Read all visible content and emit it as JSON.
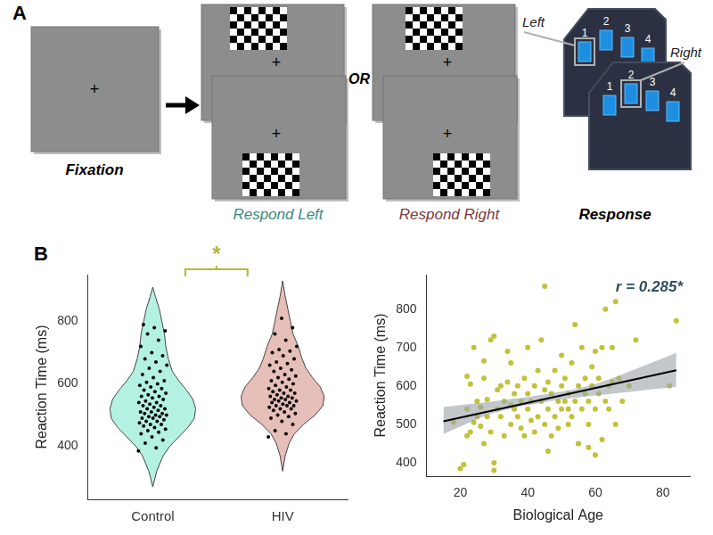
{
  "panel_a": {
    "letter": "A",
    "fixation": {
      "label": "Fixation",
      "symbol": "+"
    },
    "separator": "OR",
    "conditions": [
      {
        "label": "Respond Left",
        "color": "#3a8a80"
      },
      {
        "label": "Respond Right",
        "color": "#7b3b3b"
      }
    ],
    "response": {
      "label": "Response",
      "buttons": [
        "1",
        "2",
        "3",
        "4"
      ],
      "callouts": [
        {
          "text": "Left",
          "button": "1"
        },
        {
          "text": "Right",
          "button": "2"
        }
      ]
    }
  },
  "panel_b": {
    "letter": "B"
  },
  "chart_data": [
    {
      "type": "violin",
      "y_label": "Reaction Time (ms)",
      "categories": [
        "Control",
        "HIV"
      ],
      "colors": [
        "#b3f2e2",
        "#e6bfb8"
      ],
      "ylim": [
        230,
        950
      ],
      "yticks": [
        400,
        600,
        800
      ],
      "grid": false,
      "points": [
        [
          385,
          395,
          410,
          420,
          430,
          440,
          445,
          450,
          455,
          460,
          465,
          470,
          470,
          475,
          480,
          480,
          485,
          490,
          490,
          495,
          495,
          500,
          500,
          505,
          505,
          510,
          510,
          515,
          520,
          520,
          525,
          530,
          530,
          535,
          540,
          540,
          545,
          550,
          555,
          560,
          560,
          565,
          570,
          575,
          580,
          585,
          590,
          595,
          600,
          605,
          610,
          620,
          630,
          640,
          650,
          660,
          670,
          680,
          690,
          700,
          720,
          740,
          760,
          770,
          780,
          790
        ],
        [
          430,
          440,
          450,
          470,
          480,
          490,
          495,
          500,
          505,
          510,
          515,
          520,
          520,
          525,
          530,
          530,
          530,
          535,
          540,
          540,
          545,
          545,
          550,
          550,
          555,
          555,
          560,
          560,
          565,
          570,
          570,
          575,
          580,
          580,
          585,
          590,
          595,
          600,
          605,
          610,
          615,
          620,
          625,
          630,
          640,
          645,
          650,
          660,
          665,
          670,
          680,
          690,
          700,
          705,
          710,
          720,
          740,
          760,
          780,
          810
        ]
      ],
      "violins": [
        {
          "y": [
            270,
            320,
            370,
            400,
            430,
            460,
            490,
            520,
            550,
            580,
            610,
            640,
            680,
            720,
            760,
            800,
            840,
            880,
            910
          ],
          "half_width": [
            0,
            0.03,
            0.08,
            0.13,
            0.2,
            0.27,
            0.32,
            0.33,
            0.31,
            0.26,
            0.2,
            0.15,
            0.12,
            0.1,
            0.09,
            0.07,
            0.05,
            0.02,
            0
          ]
        },
        {
          "y": [
            320,
            370,
            410,
            440,
            470,
            500,
            530,
            560,
            590,
            620,
            650,
            680,
            720,
            760,
            800,
            840,
            880,
            930
          ],
          "half_width": [
            0,
            0.02,
            0.05,
            0.09,
            0.16,
            0.25,
            0.31,
            0.32,
            0.29,
            0.23,
            0.18,
            0.15,
            0.12,
            0.08,
            0.06,
            0.04,
            0.02,
            0
          ]
        }
      ],
      "annotation": {
        "text": "*",
        "color": "#b5b834",
        "between": [
          "Control",
          "HIV"
        ]
      }
    },
    {
      "type": "scatter",
      "x_label": "Biological Age",
      "y_label": "Reaction Time (ms)",
      "color": "#c2c23a",
      "x": [
        18,
        20,
        21,
        22,
        22,
        22,
        23,
        23,
        24,
        24,
        25,
        25,
        26,
        26,
        27,
        27,
        28,
        28,
        29,
        29,
        30,
        30,
        30,
        31,
        31,
        32,
        32,
        33,
        33,
        34,
        34,
        35,
        35,
        36,
        36,
        37,
        37,
        38,
        38,
        39,
        39,
        40,
        40,
        40,
        41,
        41,
        42,
        42,
        43,
        43,
        44,
        44,
        45,
        45,
        45,
        46,
        46,
        47,
        47,
        48,
        48,
        49,
        49,
        50,
        50,
        50,
        51,
        51,
        52,
        52,
        53,
        53,
        54,
        54,
        55,
        55,
        56,
        56,
        57,
        57,
        58,
        58,
        59,
        59,
        60,
        60,
        60,
        61,
        61,
        62,
        62,
        63,
        63,
        64,
        64,
        65,
        65,
        66,
        66,
        67,
        68,
        70,
        72,
        82,
        84,
        52,
        46,
        35,
        27,
        58
      ],
      "values": [
        505,
        385,
        395,
        470,
        540,
        625,
        480,
        605,
        700,
        505,
        520,
        560,
        545,
        495,
        450,
        665,
        565,
        520,
        480,
        720,
        730,
        380,
        400,
        590,
        540,
        600,
        520,
        560,
        470,
        610,
        690,
        500,
        550,
        580,
        540,
        520,
        600,
        560,
        490,
        470,
        620,
        540,
        580,
        700,
        510,
        560,
        600,
        480,
        520,
        640,
        560,
        720,
        860,
        590,
        500,
        540,
        610,
        470,
        580,
        640,
        520,
        560,
        490,
        600,
        540,
        680,
        560,
        620,
        580,
        500,
        520,
        660,
        760,
        560,
        450,
        600,
        540,
        700,
        580,
        620,
        560,
        500,
        600,
        650,
        540,
        690,
        420,
        580,
        620,
        700,
        460,
        560,
        800,
        600,
        540,
        610,
        700,
        500,
        820,
        620,
        560,
        600,
        720,
        600,
        770,
        540,
        430,
        660,
        620,
        440
      ],
      "xlim": [
        10,
        88
      ],
      "xticks": [
        20,
        40,
        60,
        80
      ],
      "ylim": [
        365,
        890
      ],
      "yticks": [
        400,
        500,
        600,
        700,
        800
      ],
      "grid": false,
      "regression": {
        "x": [
          15,
          84
        ],
        "y": [
          508,
          641
        ],
        "color": "#000000"
      },
      "confidence_band": {
        "x": [
          15,
          30,
          45,
          60,
          84
        ],
        "lower": [
          475,
          530,
          558,
          575,
          598
        ],
        "upper": [
          545,
          560,
          578,
          605,
          686
        ],
        "color": "#9aa3a6"
      },
      "annotation": {
        "text": "r = 0.285*",
        "color": "#2f4f5f"
      }
    }
  ]
}
